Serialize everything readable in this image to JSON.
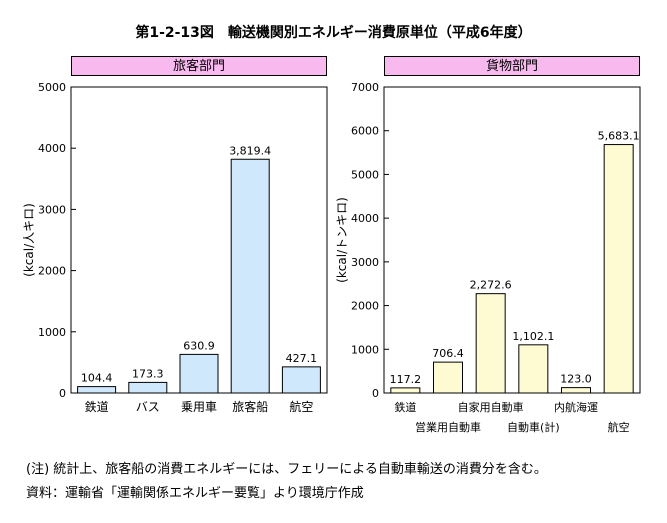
{
  "figure_title": "第1-2-13図　輸送機関別エネルギー消費原単位（平成6年度）",
  "note": "(注) 統計上、旅客船の消費エネルギーには、フェリーによる自動車輸送の消費分を含む。",
  "source": "資料：運輸省「運輸関係エネルギー要覧」より環境庁作成",
  "colors": {
    "passenger_bar": "#cfe8fb",
    "freight_bar": "#fefbd3",
    "header": "#f7b9ee"
  },
  "chart_data": [
    {
      "type": "bar",
      "title": "旅客部門",
      "ylabel": "(kcal/人キロ)",
      "ylim": [
        0,
        5000
      ],
      "yticks": [
        "0",
        "1000",
        "2000",
        "3000",
        "4000",
        "5000"
      ],
      "categories": [
        "鉄道",
        "バス",
        "乗用車",
        "旅客船",
        "航空"
      ],
      "values": [
        104.4,
        173.3,
        630.9,
        3819.4,
        427.1
      ],
      "value_labels": [
        "104.4",
        "173.3",
        "630.9",
        "3,819.4",
        "427.1"
      ]
    },
    {
      "type": "bar",
      "title": "貨物部門",
      "ylabel": "(kcal/トンキロ)",
      "ylim": [
        0,
        7000
      ],
      "yticks": [
        "0",
        "1000",
        "2000",
        "3000",
        "4000",
        "5000",
        "6000",
        "7000"
      ],
      "categories": [
        "鉄道",
        "営業用自動車",
        "自家用自動車",
        "自動車(計)",
        "内航海運",
        "航空"
      ],
      "values": [
        117.2,
        706.4,
        2272.6,
        1102.1,
        123.0,
        5683.1
      ],
      "value_labels": [
        "117.2",
        "706.4",
        "2,272.6",
        "1,102.1",
        "123.0",
        "5,683.1"
      ]
    }
  ]
}
